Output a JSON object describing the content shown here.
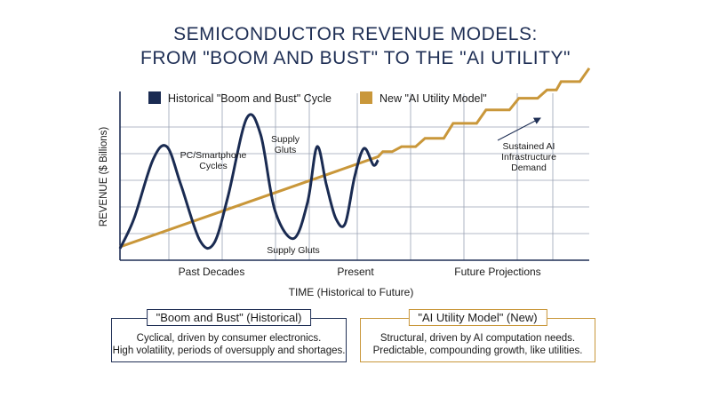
{
  "title_line1": "SEMICONDUCTOR REVENUE MODELS:",
  "title_line2": "FROM \"BOOM AND BUST\" TO THE \"AI UTILITY\"",
  "chart_data": {
    "type": "line",
    "xlabel": "TIME (Historical to Future)",
    "ylabel": "REVENUE ($ Billions)",
    "x_tick_labels": [
      "Past Decades",
      "Present",
      "Future Projections"
    ],
    "grid": true,
    "legend": {
      "placement": "top",
      "items": [
        {
          "label": "Historical \"Boom and Bust\" Cycle",
          "color": "#1a2b52"
        },
        {
          "label": "New \"AI Utility Model\"",
          "color": "#c9973a"
        }
      ]
    },
    "annotations": [
      {
        "text_lines": [
          "PC/Smartphone",
          "Cycles"
        ]
      },
      {
        "text_lines": [
          "Supply",
          "Gluts"
        ]
      },
      {
        "text_lines": [
          "Supply Gluts"
        ]
      },
      {
        "text_lines": [
          "Sustained AI",
          "Infrastructure",
          "Demand"
        ]
      }
    ],
    "note": "Conceptual chart; no numeric axis values printed. x and y given as fractions (0-1) of the plotted range.",
    "series": [
      {
        "name": "Historical \"Boom and Bust\" Cycle",
        "x": [
          0.0,
          0.03,
          0.07,
          0.1,
          0.13,
          0.17,
          0.2,
          0.23,
          0.27,
          0.3,
          0.33,
          0.37,
          0.4,
          0.42,
          0.44,
          0.46,
          0.48,
          0.5,
          0.52,
          0.54,
          0.55
        ],
        "y": [
          0.07,
          0.25,
          0.6,
          0.68,
          0.45,
          0.12,
          0.1,
          0.38,
          0.85,
          0.75,
          0.3,
          0.13,
          0.35,
          0.68,
          0.45,
          0.25,
          0.22,
          0.5,
          0.67,
          0.57,
          0.6
        ]
      },
      {
        "name": "New \"AI Utility Model\"",
        "x": [
          0.0,
          0.55,
          0.56,
          0.58,
          0.6,
          0.63,
          0.65,
          0.69,
          0.71,
          0.76,
          0.78,
          0.83,
          0.85,
          0.89,
          0.91,
          0.93,
          0.94,
          0.98,
          1.0
        ],
        "y": [
          0.08,
          0.62,
          0.65,
          0.65,
          0.68,
          0.68,
          0.73,
          0.73,
          0.82,
          0.82,
          0.9,
          0.9,
          0.97,
          0.97,
          1.02,
          1.02,
          1.07,
          1.07,
          1.15
        ]
      }
    ]
  },
  "box_left": {
    "title": "\"Boom and Bust\" (Historical)",
    "line1": "Cyclical, driven by consumer electronics.",
    "line2": "High volatility, periods of oversupply and shortages."
  },
  "box_right": {
    "title": "\"AI Utility Model\" (New)",
    "line1": "Structural, driven by AI computation needs.",
    "line2": "Predictable, compounding growth, like utilities."
  },
  "colors": {
    "historical": "#1a2b52",
    "ai": "#c9973a",
    "grid": "#9aa3b5",
    "axis": "#1f2f55"
  }
}
